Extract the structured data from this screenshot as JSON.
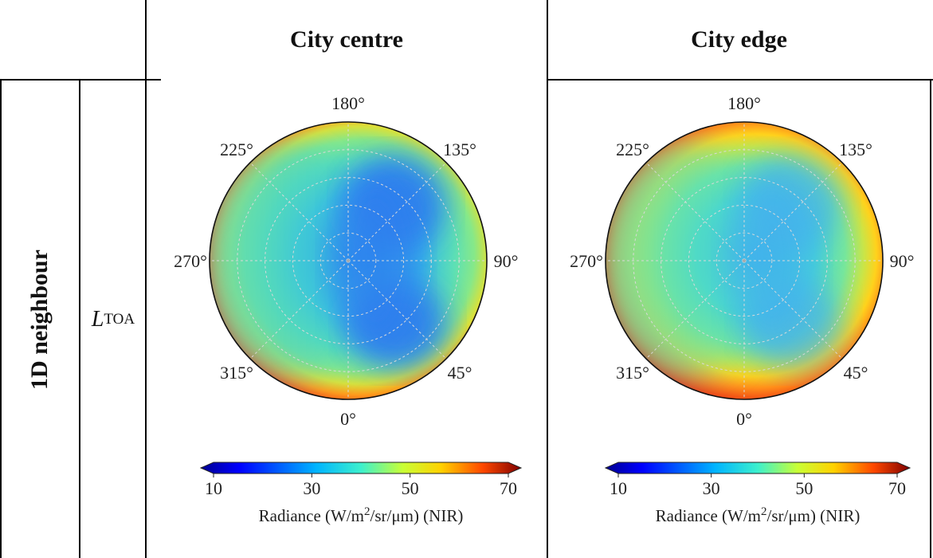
{
  "table": {
    "columns": [
      "City centre",
      "City edge"
    ],
    "row_label": "1D neighbour",
    "variable": {
      "symbol": "L",
      "subscript": "TOA"
    }
  },
  "chart_data": [
    {
      "type": "heatmap",
      "projection": "polar",
      "panel": "City centre",
      "angle_labels": [
        "180°",
        "135°",
        "90°",
        "45°",
        "0°",
        "315°",
        "270°",
        "225°"
      ],
      "colorbar": {
        "ticks": [
          10,
          30,
          50,
          70
        ],
        "range": [
          10,
          70
        ],
        "label_prefix": "Radiance (W/m",
        "label_sup": "2",
        "label_suffix": "/sr/μm) (NIR)"
      },
      "colormap": "jet",
      "grid": true
    },
    {
      "type": "heatmap",
      "projection": "polar",
      "panel": "City edge",
      "angle_labels": [
        "180°",
        "135°",
        "90°",
        "45°",
        "0°",
        "315°",
        "270°",
        "225°"
      ],
      "colorbar": {
        "ticks": [
          10,
          30,
          50,
          70
        ],
        "range": [
          10,
          70
        ],
        "label_prefix": "Radiance (W/m",
        "label_sup": "2",
        "label_suffix": "/sr/μm) (NIR)"
      },
      "colormap": "jet",
      "grid": true
    }
  ]
}
